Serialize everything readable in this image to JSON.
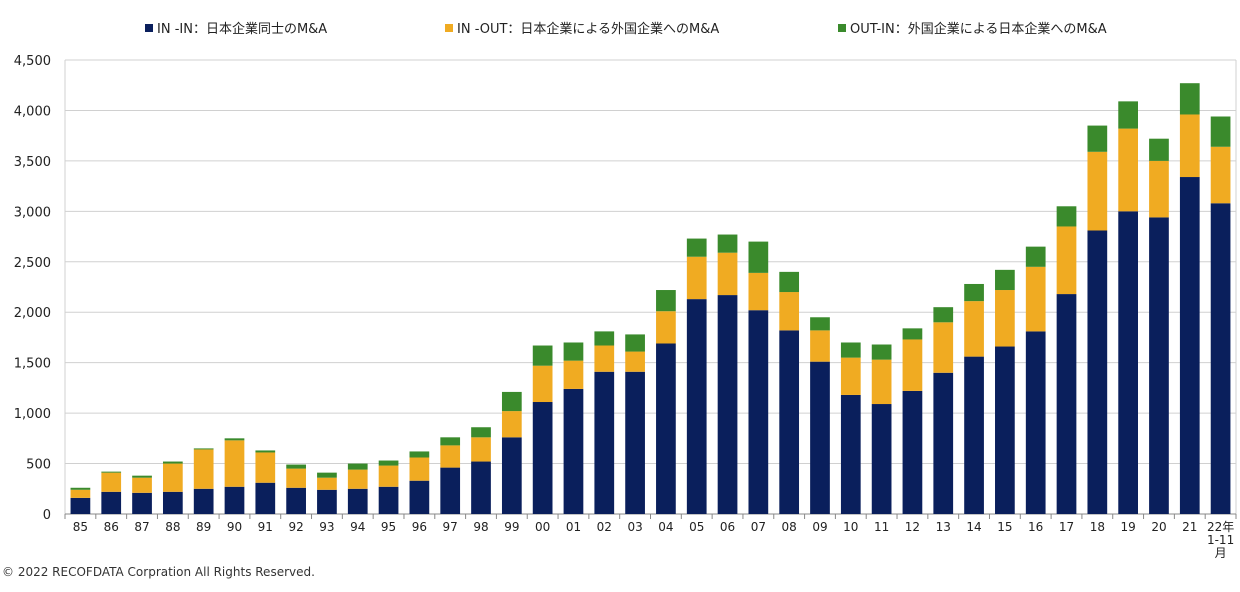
{
  "chart_data": {
    "type": "bar",
    "stacked": true,
    "title": "",
    "xlabel": "",
    "ylabel": "",
    "ylim": [
      0,
      4500
    ],
    "yticks": [
      0,
      500,
      1000,
      1500,
      2000,
      2500,
      3000,
      3500,
      4000,
      4500
    ],
    "ytick_labels": [
      "0",
      "500",
      "1,000",
      "1,500",
      "2,000",
      "2,500",
      "3,000",
      "3,500",
      "4,000",
      "4,500"
    ],
    "grid": true,
    "legend_position": "top-center",
    "categories": [
      "85",
      "86",
      "87",
      "88",
      "89",
      "90",
      "91",
      "92",
      "93",
      "94",
      "95",
      "96",
      "97",
      "98",
      "99",
      "00",
      "01",
      "02",
      "03",
      "04",
      "05",
      "06",
      "07",
      "08",
      "09",
      "10",
      "11",
      "12",
      "13",
      "14",
      "15",
      "16",
      "17",
      "18",
      "19",
      "20",
      "21",
      "22年\n1-11\n月"
    ],
    "series": [
      {
        "name": "IN -IN：日本企業同士のM&A",
        "color": "#0a1f5c",
        "values": [
          160,
          220,
          210,
          220,
          250,
          270,
          310,
          260,
          240,
          250,
          270,
          330,
          460,
          520,
          760,
          1110,
          1240,
          1410,
          1410,
          1690,
          2130,
          2170,
          2020,
          1820,
          1510,
          1180,
          1090,
          1220,
          1400,
          1560,
          1660,
          1810,
          2180,
          2810,
          3000,
          2940,
          3340,
          3080
        ]
      },
      {
        "name": "IN -OUT：日本企業による外国企業へのM&A",
        "color": "#f0ab22",
        "values": [
          80,
          190,
          150,
          280,
          390,
          460,
          300,
          190,
          120,
          190,
          210,
          230,
          220,
          240,
          260,
          360,
          280,
          260,
          200,
          320,
          420,
          420,
          370,
          380,
          310,
          370,
          440,
          510,
          500,
          550,
          560,
          640,
          670,
          780,
          820,
          560,
          620,
          560
        ]
      },
      {
        "name": "OUT-IN：外国企業による日本企業へのM&A",
        "color": "#3a8a2c",
        "values": [
          20,
          10,
          20,
          20,
          10,
          20,
          20,
          40,
          50,
          60,
          50,
          60,
          80,
          100,
          190,
          200,
          180,
          140,
          170,
          210,
          180,
          180,
          310,
          200,
          130,
          150,
          150,
          110,
          150,
          170,
          200,
          200,
          200,
          260,
          270,
          220,
          310,
          300
        ]
      }
    ]
  },
  "footer": {
    "copyright": "© 2022 RECOFDATA Corpration All Rights Reserved."
  }
}
